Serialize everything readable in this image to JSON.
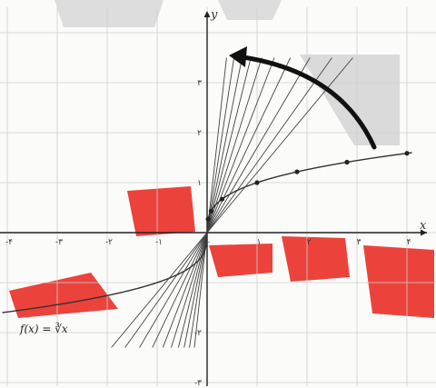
{
  "axes": {
    "x_label": "x",
    "y_label": "y",
    "x_ticks": [
      {
        "v": -4,
        "label": "-۴"
      },
      {
        "v": -3,
        "label": "-۳"
      },
      {
        "v": -2,
        "label": "-۲"
      },
      {
        "v": -1,
        "label": "-۱"
      },
      {
        "v": 0,
        "label": "۰"
      },
      {
        "v": 1,
        "label": "۱"
      },
      {
        "v": 2,
        "label": "۲"
      },
      {
        "v": 3,
        "label": "۳"
      },
      {
        "v": 4,
        "label": "۴"
      }
    ],
    "y_ticks": [
      {
        "v": 3,
        "label": "۳"
      },
      {
        "v": 2,
        "label": "۲"
      },
      {
        "v": 1,
        "label": "۱"
      },
      {
        "v": -2,
        "label": "-۲"
      },
      {
        "v": -3,
        "label": "-۳"
      }
    ]
  },
  "function_label": "f(x) = ∛x",
  "curve_points_x": [
    0.02,
    0.08,
    0.3,
    1,
    1.8,
    2.8,
    4
  ],
  "secant_slopes": [
    1.2,
    1.4,
    1.7,
    2.1,
    2.6,
    3.2,
    4.0,
    5.0,
    6.5,
    9.0
  ],
  "colors": {
    "watermark_red": "#e8221a",
    "watermark_gray": "#c8c8c8",
    "arrow": "#111111"
  },
  "icons": [
    "curved-arrow-icon",
    "watermark-logo"
  ]
}
